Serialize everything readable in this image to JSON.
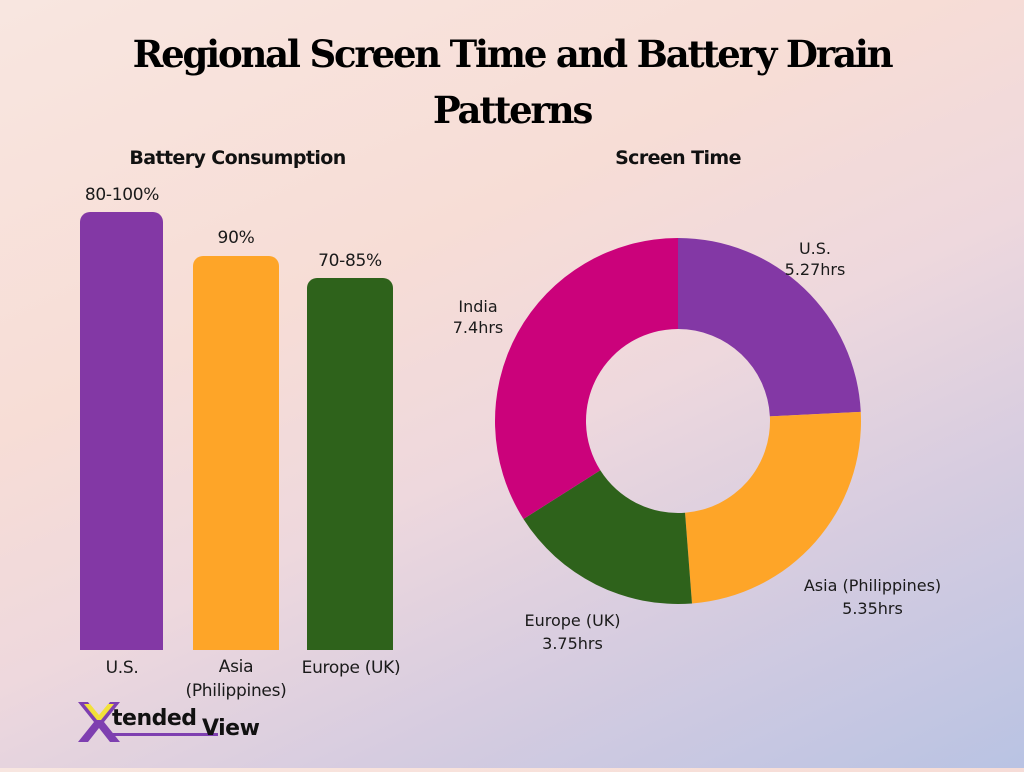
{
  "title": {
    "line1": "Regional Screen Time and Battery Drain",
    "line2": "Patterns"
  },
  "battery": {
    "subtitle": "Battery Consumption",
    "bars": [
      {
        "label": "U.S.",
        "value_label": "80-100%",
        "color": "#8338a5"
      },
      {
        "label_line1": "Asia",
        "label_line2": "(Philippines)",
        "value_label": "90%",
        "color": "#fea528"
      },
      {
        "label": "Europe (UK)",
        "value_label": "70-85%",
        "color": "#2e621b"
      }
    ]
  },
  "screen_time": {
    "subtitle": "Screen Time",
    "slices": [
      {
        "name": "U.S.",
        "value_label": "5.27hrs",
        "color": "#8338a5"
      },
      {
        "name": "Asia (Philippines)",
        "value_label": "5.35hrs",
        "color": "#fea528"
      },
      {
        "name": "Europe (UK)",
        "value_label": "3.75hrs",
        "color": "#2e621b"
      },
      {
        "name": "India",
        "value_label": "7.4hrs",
        "color": "#cb027b"
      }
    ]
  },
  "logo": {
    "letter": "X",
    "word1": "tended",
    "word2": "View",
    "purple": "#7e3fb0",
    "yellow": "#f2e13a"
  },
  "chart_data": [
    {
      "type": "bar",
      "title": "Battery Consumption",
      "categories": [
        "U.S.",
        "Asia (Philippines)",
        "Europe (UK)"
      ],
      "values": [
        100,
        90,
        85
      ],
      "value_labels": [
        "80-100%",
        "90%",
        "70-85%"
      ],
      "ranges": [
        [
          80,
          100
        ],
        [
          90,
          90
        ],
        [
          70,
          85
        ]
      ],
      "colors": [
        "#8338a5",
        "#fea528",
        "#2e621b"
      ],
      "xlabel": "",
      "ylabel": "",
      "grid": false,
      "axes_visible": false
    },
    {
      "type": "pie",
      "style": "donut",
      "title": "Screen Time",
      "categories": [
        "U.S.",
        "Asia (Philippines)",
        "Europe (UK)",
        "India"
      ],
      "values": [
        5.27,
        5.35,
        3.75,
        7.4
      ],
      "unit": "hrs",
      "colors": [
        "#8338a5",
        "#fea528",
        "#2e621b",
        "#cb027b"
      ],
      "start_angle": "12 o'clock",
      "direction": "clockwise",
      "legend": "none (direct labels)"
    }
  ]
}
